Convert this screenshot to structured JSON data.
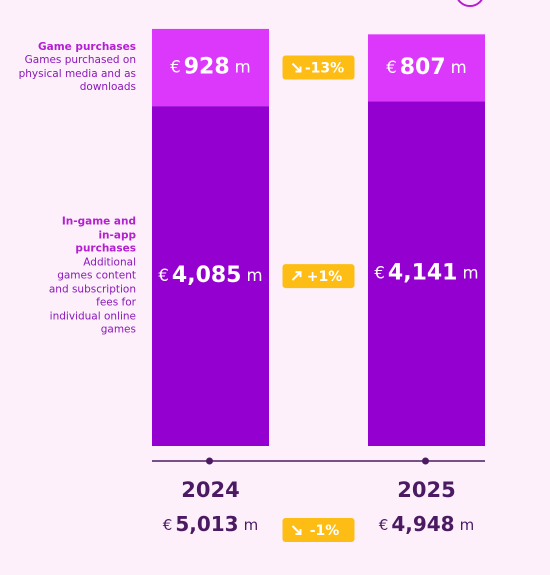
{
  "chart_data": {
    "type": "bar",
    "stacked": true,
    "currency": "€",
    "unit": "m",
    "categories": [
      "2024",
      "2025"
    ],
    "series": [
      {
        "name": "In-game and in-app purchases",
        "description": "Additional games content and subscription fees for individual online games",
        "color": "#9400cf",
        "values": [
          4085,
          4141
        ],
        "value_labels": [
          "4,085",
          "4,141"
        ]
      },
      {
        "name": "Game purchases",
        "description": "Games purchased on physical media and as downloads",
        "color": "#dc38fb",
        "values": [
          928,
          807
        ],
        "value_labels": [
          "928",
          "807"
        ]
      }
    ],
    "changes": {
      "color": "#fdbd14",
      "values": [
        1,
        -13,
        -1
      ],
      "value_labels": [
        "+1%",
        "-13%",
        "-1%"
      ]
    },
    "totals": {
      "values": [
        5013,
        4948
      ],
      "value_labels": [
        "5,013",
        "4,948"
      ]
    }
  }
}
